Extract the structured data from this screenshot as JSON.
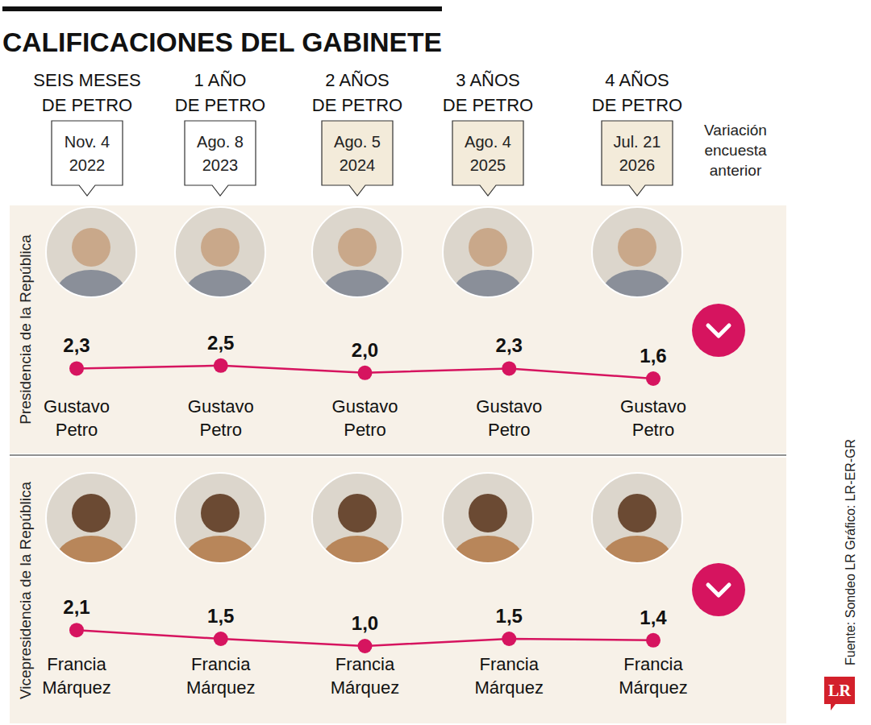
{
  "title": "CALIFICACIONES DEL GABINETE",
  "periods": [
    {
      "label": "SEIS MESES DE PETRO",
      "date": "Nov. 4 2022"
    },
    {
      "label": "1 AÑO DE PETRO",
      "date": "Ago. 8 2023"
    },
    {
      "label": "2 AÑOS DE PETRO",
      "date": "Ago. 5 2024"
    },
    {
      "label": "3 AÑOS DE PETRO",
      "date": "Ago. 4 2025"
    },
    {
      "label": "4 AÑOS DE PETRO",
      "date": "Jul. 21 2026"
    }
  ],
  "variation_header": "Variación encuesta anterior",
  "source": "Fuente: Sondeo LR Gráfico: LR-ER-GR",
  "logo": "LR",
  "chart_data": [
    {
      "type": "line",
      "title": "Presidencia de la República",
      "categories": [
        "Gustavo Petro",
        "Gustavo Petro",
        "Gustavo Petro",
        "Gustavo Petro",
        "Gustavo Petro"
      ],
      "values": [
        2.3,
        2.5,
        2.0,
        2.3,
        1.6
      ],
      "value_labels": [
        "2,3",
        "2,5",
        "2,0",
        "2,3",
        "1,6"
      ],
      "color": "#d6145f",
      "marker": "circle",
      "data_labels": true,
      "tick_labels": false
    },
    {
      "type": "line",
      "title": "Vicepresidencia de la República",
      "categories": [
        "Francia Márquez",
        "Francia Márquez",
        "Francia Márquez",
        "Francia Márquez",
        "Francia Márquez"
      ],
      "values": [
        2.1,
        1.5,
        1.0,
        1.5,
        1.4
      ],
      "value_labels": [
        "2,1",
        "1,5",
        "1,0",
        "1,5",
        "1,4"
      ],
      "color": "#d6145f",
      "marker": "circle",
      "data_labels": true,
      "tick_labels": false
    }
  ]
}
